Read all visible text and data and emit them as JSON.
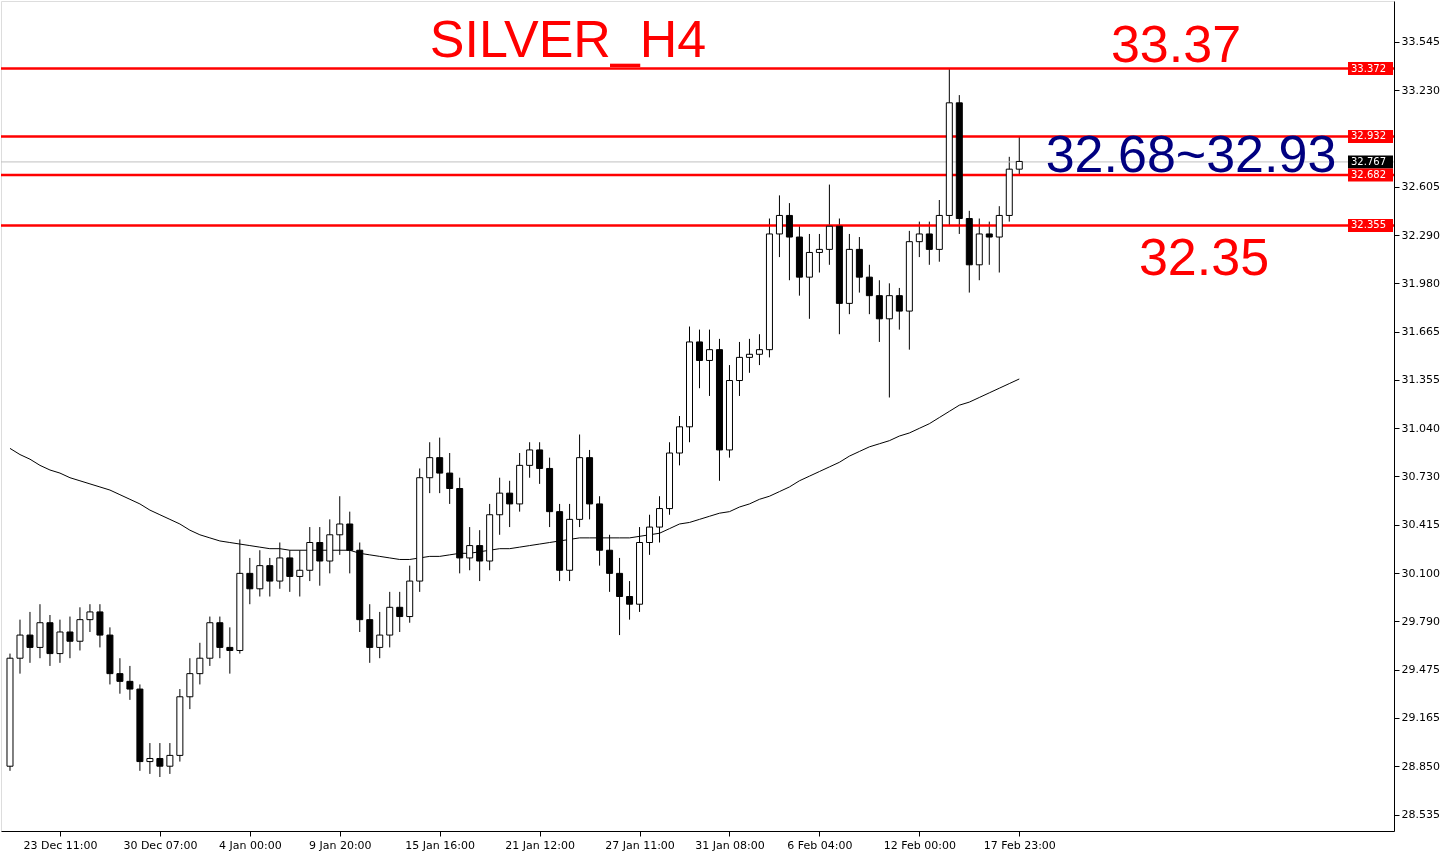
{
  "chart_data": {
    "type": "candlestick",
    "title": "SILVER_H4",
    "categories": [
      null,
      null,
      null,
      null,
      null,
      "23 Dec 11:00",
      null,
      null,
      null,
      null,
      null,
      null,
      null,
      null,
      null,
      "30 Dec 07:00",
      null,
      null,
      null,
      null,
      null,
      null,
      null,
      null,
      "4 Jan 00:00",
      null,
      null,
      null,
      null,
      null,
      null,
      null,
      null,
      "9 Jan 20:00",
      null,
      null,
      null,
      null,
      null,
      null,
      null,
      null,
      null,
      "15 Jan 16:00",
      null,
      null,
      null,
      null,
      null,
      null,
      null,
      null,
      null,
      "21 Jan 12:00",
      null,
      null,
      null,
      null,
      null,
      null,
      null,
      null,
      null,
      "27 Jan 11:00",
      null,
      null,
      null,
      null,
      null,
      null,
      null,
      null,
      "31 Jan 08:00",
      null,
      null,
      null,
      null,
      null,
      null,
      null,
      null,
      "6 Feb 04:00",
      null,
      null,
      null,
      null,
      null,
      null,
      null,
      null,
      null,
      "12 Feb 00:00",
      null,
      null,
      null,
      null,
      null,
      null,
      null,
      null,
      null,
      "17 Feb 23:00"
    ],
    "ohlc": [
      [
        28.85,
        29.58,
        28.82,
        29.55
      ],
      [
        29.55,
        29.8,
        29.45,
        29.7
      ],
      [
        29.7,
        29.85,
        29.52,
        29.62
      ],
      [
        29.62,
        29.9,
        29.55,
        29.78
      ],
      [
        29.78,
        29.83,
        29.5,
        29.58
      ],
      [
        29.58,
        29.8,
        29.52,
        29.72
      ],
      [
        29.72,
        29.82,
        29.55,
        29.66
      ],
      [
        29.66,
        29.88,
        29.6,
        29.8
      ],
      [
        29.8,
        29.9,
        29.72,
        29.85
      ],
      [
        29.85,
        29.9,
        29.62,
        29.7
      ],
      [
        29.7,
        29.75,
        29.38,
        29.45
      ],
      [
        29.45,
        29.55,
        29.32,
        29.4
      ],
      [
        29.4,
        29.5,
        29.28,
        29.35
      ],
      [
        29.35,
        29.38,
        28.82,
        28.88
      ],
      [
        28.88,
        29.0,
        28.8,
        28.9
      ],
      [
        28.9,
        29.0,
        28.78,
        28.85
      ],
      [
        28.85,
        29.0,
        28.8,
        28.92
      ],
      [
        28.92,
        29.35,
        28.88,
        29.3
      ],
      [
        29.3,
        29.55,
        29.22,
        29.45
      ],
      [
        29.45,
        29.65,
        29.38,
        29.55
      ],
      [
        29.55,
        29.82,
        29.5,
        29.78
      ],
      [
        29.78,
        29.82,
        29.55,
        29.62
      ],
      [
        29.62,
        29.75,
        29.45,
        29.6
      ],
      [
        29.6,
        30.32,
        29.58,
        30.1
      ],
      [
        30.1,
        30.2,
        29.9,
        30.0
      ],
      [
        30.0,
        30.25,
        29.95,
        30.15
      ],
      [
        30.15,
        30.2,
        29.95,
        30.05
      ],
      [
        30.05,
        30.3,
        30.0,
        30.2
      ],
      [
        30.2,
        30.25,
        29.98,
        30.08
      ],
      [
        30.08,
        30.25,
        29.95,
        30.12
      ],
      [
        30.12,
        30.4,
        30.05,
        30.3
      ],
      [
        30.3,
        30.4,
        30.02,
        30.18
      ],
      [
        30.18,
        30.45,
        30.1,
        30.35
      ],
      [
        30.35,
        30.6,
        30.22,
        30.42
      ],
      [
        30.42,
        30.5,
        30.1,
        30.25
      ],
      [
        30.25,
        30.3,
        29.72,
        29.8
      ],
      [
        29.8,
        29.9,
        29.52,
        29.62
      ],
      [
        29.62,
        29.85,
        29.55,
        29.7
      ],
      [
        29.7,
        29.98,
        29.62,
        29.88
      ],
      [
        29.88,
        29.98,
        29.72,
        29.82
      ],
      [
        29.82,
        30.15,
        29.78,
        30.05
      ],
      [
        30.05,
        30.78,
        29.98,
        30.72
      ],
      [
        30.72,
        30.95,
        30.62,
        30.85
      ],
      [
        30.85,
        30.98,
        30.62,
        30.75
      ],
      [
        30.75,
        30.88,
        30.55,
        30.65
      ],
      [
        30.65,
        30.72,
        30.1,
        30.2
      ],
      [
        30.2,
        30.4,
        30.12,
        30.28
      ],
      [
        30.28,
        30.38,
        30.05,
        30.18
      ],
      [
        30.18,
        30.55,
        30.12,
        30.48
      ],
      [
        30.48,
        30.72,
        30.35,
        30.62
      ],
      [
        30.62,
        30.7,
        30.4,
        30.55
      ],
      [
        30.55,
        30.88,
        30.5,
        30.8
      ],
      [
        30.8,
        30.95,
        30.72,
        30.9
      ],
      [
        30.9,
        30.95,
        30.68,
        30.78
      ],
      [
        30.78,
        30.85,
        30.4,
        30.5
      ],
      [
        30.5,
        30.55,
        30.05,
        30.12
      ],
      [
        30.12,
        30.55,
        30.05,
        30.45
      ],
      [
        30.45,
        31.0,
        30.4,
        30.85
      ],
      [
        30.85,
        30.9,
        30.45,
        30.55
      ],
      [
        30.55,
        30.6,
        30.15,
        30.25
      ],
      [
        30.25,
        30.35,
        29.98,
        30.1
      ],
      [
        30.1,
        30.2,
        29.7,
        29.95
      ],
      [
        29.95,
        30.05,
        29.8,
        29.9
      ],
      [
        29.9,
        30.4,
        29.85,
        30.3
      ],
      [
        30.3,
        30.48,
        30.22,
        30.4
      ],
      [
        30.4,
        30.6,
        30.3,
        30.52
      ],
      [
        30.52,
        30.95,
        30.48,
        30.88
      ],
      [
        30.88,
        31.12,
        30.8,
        31.05
      ],
      [
        31.05,
        31.7,
        30.95,
        31.6
      ],
      [
        31.6,
        31.68,
        31.3,
        31.48
      ],
      [
        31.48,
        31.68,
        31.25,
        31.55
      ],
      [
        31.55,
        31.62,
        30.7,
        30.9
      ],
      [
        30.9,
        31.45,
        30.85,
        31.35
      ],
      [
        31.35,
        31.6,
        31.25,
        31.5
      ],
      [
        31.5,
        31.62,
        31.4,
        31.52
      ],
      [
        31.52,
        31.65,
        31.45,
        31.55
      ],
      [
        31.55,
        32.4,
        31.5,
        32.3
      ],
      [
        32.3,
        32.55,
        32.15,
        32.42
      ],
      [
        32.42,
        32.5,
        32.0,
        32.28
      ],
      [
        32.28,
        32.35,
        31.9,
        32.02
      ],
      [
        32.02,
        32.3,
        31.75,
        32.18
      ],
      [
        32.18,
        32.3,
        32.05,
        32.2
      ],
      [
        32.2,
        32.62,
        32.1,
        32.35
      ],
      [
        32.35,
        32.4,
        31.65,
        31.85
      ],
      [
        31.85,
        32.3,
        31.78,
        32.2
      ],
      [
        32.2,
        32.28,
        31.92,
        32.02
      ],
      [
        32.02,
        32.1,
        31.78,
        31.9
      ],
      [
        31.9,
        32.0,
        31.6,
        31.75
      ],
      [
        31.75,
        31.98,
        31.24,
        31.9
      ],
      [
        31.9,
        31.95,
        31.68,
        31.8
      ],
      [
        31.8,
        32.32,
        31.55,
        32.25
      ],
      [
        32.25,
        32.38,
        32.15,
        32.3
      ],
      [
        32.3,
        32.38,
        32.1,
        32.2
      ],
      [
        32.2,
        32.52,
        32.12,
        32.42
      ],
      [
        32.42,
        33.37,
        32.35,
        33.15
      ],
      [
        33.15,
        33.2,
        32.3,
        32.4
      ],
      [
        32.4,
        32.45,
        31.92,
        32.1
      ],
      [
        32.1,
        32.4,
        32.0,
        32.3
      ],
      [
        32.3,
        32.38,
        32.1,
        32.28
      ],
      [
        32.28,
        32.48,
        32.05,
        32.42
      ],
      [
        32.42,
        32.8,
        32.38,
        32.72
      ],
      [
        32.72,
        32.93,
        32.68,
        32.77
      ]
    ],
    "series": [
      {
        "type": "line",
        "color": "#000000",
        "values": [
          30.91,
          30.87,
          30.84,
          30.8,
          30.77,
          30.75,
          30.72,
          30.7,
          30.68,
          30.66,
          30.64,
          30.61,
          30.58,
          30.55,
          30.51,
          30.48,
          30.45,
          30.42,
          30.38,
          30.35,
          30.33,
          30.31,
          30.3,
          30.29,
          30.28,
          30.27,
          30.26,
          30.26,
          30.25,
          30.25,
          30.25,
          30.25,
          30.25,
          30.25,
          30.25,
          30.23,
          30.22,
          30.21,
          30.2,
          30.19,
          30.19,
          30.2,
          30.21,
          30.21,
          30.22,
          30.23,
          30.23,
          30.24,
          30.25,
          30.26,
          30.26,
          30.27,
          30.28,
          30.29,
          30.3,
          30.31,
          30.32,
          30.33,
          30.33,
          30.33,
          30.33,
          30.33,
          30.33,
          30.34,
          30.35,
          30.36,
          30.39,
          30.42,
          30.43,
          30.45,
          30.47,
          30.49,
          30.5,
          30.53,
          30.55,
          30.58,
          30.6,
          30.63,
          30.66,
          30.7,
          30.73,
          30.76,
          30.79,
          30.82,
          30.86,
          30.89,
          30.92,
          30.94,
          30.96,
          30.99,
          31.01,
          31.04,
          31.07,
          31.11,
          31.15,
          31.19,
          31.21,
          31.24,
          31.27,
          31.3,
          31.33,
          31.36
        ]
      }
    ],
    "ylim": [
      28.43,
      33.81
    ],
    "yticks": [
      {
        "value": 28.535,
        "label": "28.535"
      },
      {
        "value": 28.85,
        "label": "28.850"
      },
      {
        "value": 29.165,
        "label": "29.165"
      },
      {
        "value": 29.475,
        "label": "29.475"
      },
      {
        "value": 29.79,
        "label": "29.790"
      },
      {
        "value": 30.1,
        "label": "30.100"
      },
      {
        "value": 30.415,
        "label": "30.415"
      },
      {
        "value": 30.73,
        "label": "30.730"
      },
      {
        "value": 31.04,
        "label": "31.040"
      },
      {
        "value": 31.355,
        "label": "31.355"
      },
      {
        "value": 31.665,
        "label": "31.665"
      },
      {
        "value": 31.98,
        "label": "31.980"
      },
      {
        "value": 32.29,
        "label": "32.290"
      },
      {
        "value": 32.605,
        "label": "32.605"
      },
      {
        "value": 33.23,
        "label": "33.230"
      },
      {
        "value": 33.545,
        "label": "33.545"
      }
    ],
    "ref_lines": [
      {
        "axis": "y",
        "value": 33.372,
        "label": "33.372",
        "color": "#ff0000"
      },
      {
        "axis": "y",
        "value": 32.932,
        "label": "32.932",
        "color": "#ff0000"
      },
      {
        "axis": "y",
        "value": 32.767,
        "label": "32.767",
        "color": "#c0c0c0"
      },
      {
        "axis": "y",
        "value": 32.682,
        "label": "32.682",
        "color": "#ff0000"
      },
      {
        "axis": "y",
        "value": 32.355,
        "label": "32.355",
        "color": "#ff0000"
      }
    ],
    "annotations": [
      "33.37",
      "32.68~32.93",
      "32.35"
    ],
    "grid": false
  }
}
